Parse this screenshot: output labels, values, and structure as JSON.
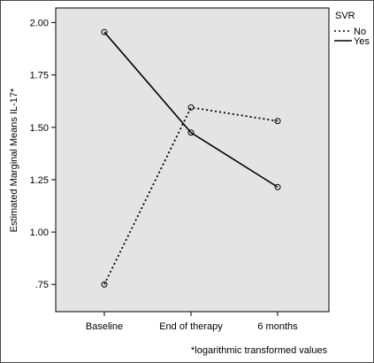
{
  "chart_data": {
    "type": "line",
    "ylabel": "Estimated Marginal Means IL-17*",
    "xlabel": "",
    "categories": [
      "Baseline",
      "End of therapy",
      "6 months"
    ],
    "yticks": [
      ".75",
      "1.00",
      "1.25",
      "1.50",
      "1.75",
      "2.00"
    ],
    "ylim": [
      0.62,
      2.07
    ],
    "legend": {
      "title": "SVR",
      "position": "top-right"
    },
    "series": [
      {
        "name": "No",
        "style": "dotted",
        "values": [
          0.75,
          1.595,
          1.53
        ]
      },
      {
        "name": "Yes",
        "style": "solid",
        "values": [
          1.955,
          1.475,
          1.215
        ]
      }
    ],
    "footnote": "*logarithmic transformed values",
    "grid": false,
    "colors": {
      "plot_bg": "#e4e4e4",
      "line": "#000000"
    }
  }
}
